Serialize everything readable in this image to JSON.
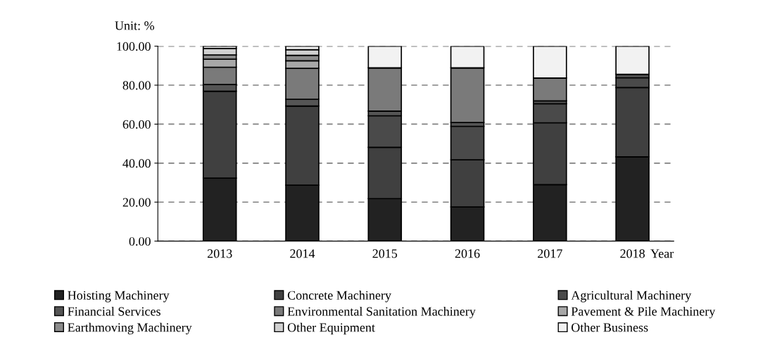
{
  "chart_data": {
    "type": "bar",
    "stacked": true,
    "ylabel": "Unit: %",
    "xlabel": "Year",
    "categories": [
      "2013",
      "2014",
      "2015",
      "2016",
      "2017",
      "2018"
    ],
    "series": [
      {
        "name": "Hoisting Machinery",
        "color": "#222222",
        "values": [
          32.3,
          28.7,
          21.8,
          17.5,
          29.0,
          43.2
        ]
      },
      {
        "name": "Concrete Machinery",
        "color": "#404040",
        "values": [
          44.6,
          40.6,
          26.3,
          24.2,
          31.7,
          35.6
        ]
      },
      {
        "name": "Agricultural Machinery",
        "color": "#4a4a4a",
        "values": [
          0,
          0,
          16.2,
          17.2,
          9.8,
          5.0
        ]
      },
      {
        "name": "Financial Services",
        "color": "#555555",
        "values": [
          3.4,
          3.5,
          2.4,
          1.9,
          1.4,
          1.8
        ]
      },
      {
        "name": "Environmental Sanitation Machinery",
        "color": "#7a7a7a",
        "values": [
          8.9,
          15.8,
          22.2,
          28.1,
          11.8,
          0
        ]
      },
      {
        "name": "Pavement & Pile Machinery",
        "color": "#a8a8a8",
        "values": [
          4.1,
          3.9,
          0,
          0,
          0,
          0
        ]
      },
      {
        "name": "Earthmoving Machinery",
        "color": "#8c8c8c",
        "values": [
          2.2,
          2.8,
          0,
          0,
          0,
          0
        ]
      },
      {
        "name": "Other Equipment",
        "color": "#d0d0d0",
        "values": [
          3.3,
          2.9,
          0,
          0,
          0,
          0
        ]
      },
      {
        "name": "Other Business",
        "color": "#f2f2f2",
        "values": [
          1.2,
          1.8,
          11.1,
          11.1,
          16.3,
          14.4
        ]
      }
    ],
    "ylim": [
      0,
      100
    ],
    "yticks": [
      {
        "value": 0,
        "label": "0.00"
      },
      {
        "value": 20,
        "label": "20.00"
      },
      {
        "value": 40,
        "label": "40.00"
      },
      {
        "value": 60,
        "label": "60.00"
      },
      {
        "value": 80,
        "label": "80.00"
      },
      {
        "value": 100,
        "label": "100.00"
      }
    ],
    "grid": "y",
    "legend": "bottom"
  }
}
